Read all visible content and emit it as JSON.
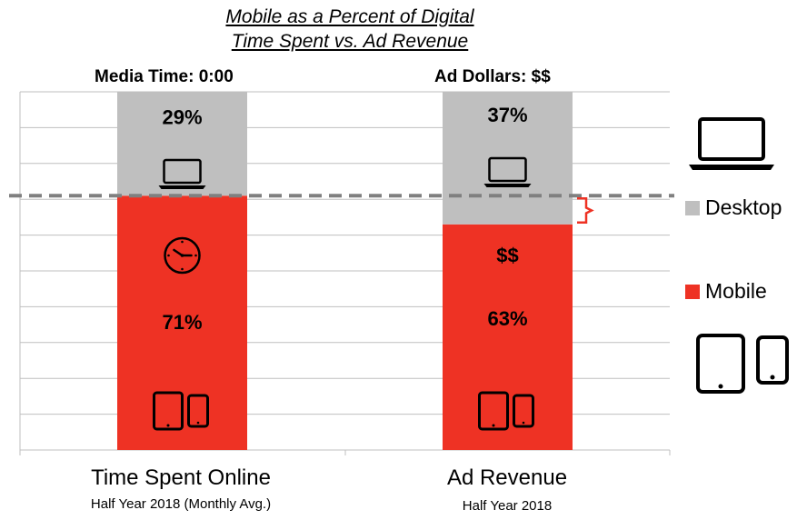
{
  "chart_data": {
    "type": "bar",
    "stacked": true,
    "percent": true,
    "title_line1": "Mobile as a Percent of Digital",
    "title_line2": "Time Spent vs. Ad Revenue",
    "categories": [
      "Time Spent Online",
      "Ad Revenue"
    ],
    "category_subtitles": [
      "Half Year 2018 (Monthly Avg.)",
      "Half Year 2018"
    ],
    "top_labels": [
      "Media Time:  0:00",
      "Ad Dollars:  $$"
    ],
    "series": [
      {
        "name": "Mobile",
        "color": "#ee3224",
        "values": [
          71,
          63
        ],
        "labels": [
          "71%",
          "63%"
        ]
      },
      {
        "name": "Desktop",
        "color": "#bfbfbf",
        "values": [
          29,
          37
        ],
        "labels": [
          "29%",
          "37%"
        ]
      }
    ],
    "inner_annotations": [
      "",
      "$$"
    ],
    "ylim": [
      0,
      100
    ],
    "grid": true,
    "reference_line_value": 71,
    "legend": [
      "Desktop",
      "Mobile"
    ],
    "legend_position": "right"
  },
  "colors": {
    "mobile": "#ee3224",
    "desktop": "#bfbfbf",
    "grid": "#bfbfbf",
    "dashed": "#808080",
    "bracket": "#ee3224"
  },
  "icons": {
    "laptop": "laptop-icon",
    "clock": "clock-icon",
    "tablet": "tablet-icon",
    "phone": "phone-icon"
  }
}
